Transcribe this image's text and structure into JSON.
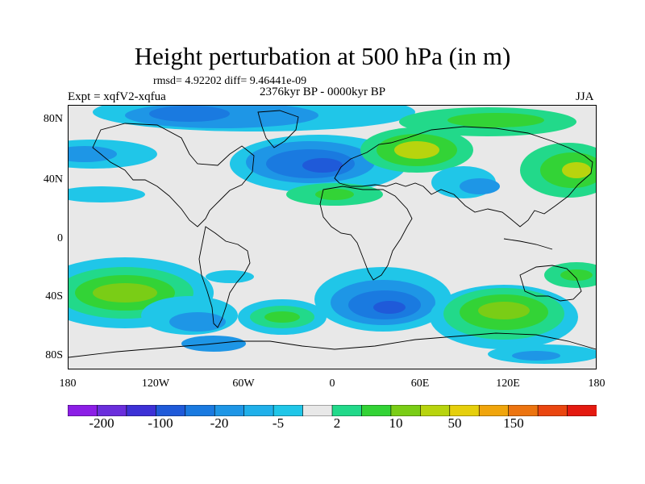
{
  "plot": {
    "title": "Height perturbation at 500 hPa (in m)",
    "stats": "rmsd= 4.92202 diff= 9.46441e-09",
    "left_label": "Expt = xqfV2-xqfua",
    "center_label": "2376kyr BP - 0000kyr BP",
    "right_label": "JJA"
  },
  "axes": {
    "lat_ticks": [
      "80N",
      "40N",
      "0",
      "40S",
      "80S"
    ],
    "lon_ticks": [
      "180",
      "120W",
      "60W",
      "0",
      "60E",
      "120E",
      "180"
    ]
  },
  "colorbar": {
    "labels": [
      "-200",
      "-100",
      "-20",
      "-5",
      "2",
      "10",
      "50",
      "150"
    ],
    "colors": [
      "#8c1ee6",
      "#6a2edc",
      "#3d31d6",
      "#1f5ad9",
      "#1a7ae0",
      "#1e96e6",
      "#20b0ea",
      "#20c6e8",
      "#e8e8e8",
      "#22d98a",
      "#33d336",
      "#7acd16",
      "#b8d40e",
      "#e6cf0c",
      "#f0a50c",
      "#ec7410",
      "#ea4610",
      "#e41a10"
    ]
  },
  "colors": {
    "background": "#e8e8e8",
    "land_line": "#000000"
  }
}
